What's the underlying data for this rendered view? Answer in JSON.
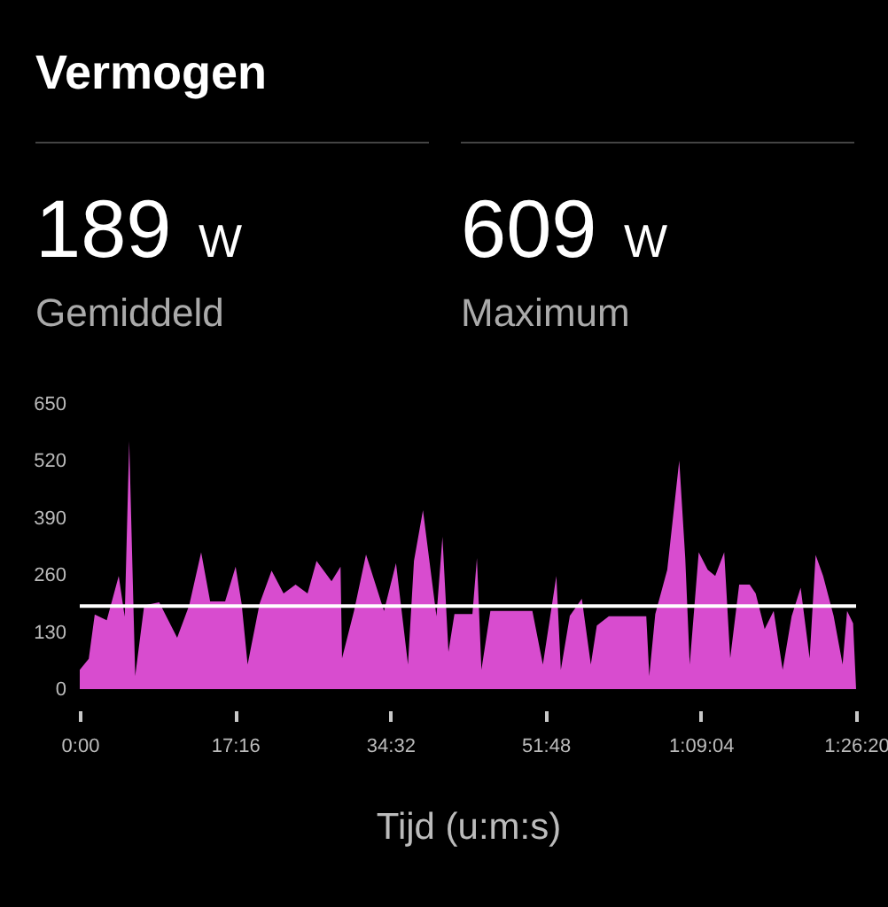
{
  "chart_data": {
    "type": "area",
    "title": "Vermogen",
    "xlabel": "Tijd (u:m:s)",
    "annotations": [
      "189 W",
      "Gemiddeld",
      "609 W",
      "Maximum"
    ],
    "x": [
      0,
      60,
      100,
      180,
      260,
      300,
      330,
      370,
      430,
      530,
      650,
      730,
      810,
      870,
      970,
      1040,
      1080,
      1120,
      1200,
      1280,
      1360,
      1440,
      1520,
      1580,
      1680,
      1740,
      1750,
      1830,
      1910,
      2030,
      2110,
      2190,
      2230,
      2290,
      2320,
      2380,
      2420,
      2460,
      2500,
      2620,
      2650,
      2680,
      2740,
      3020,
      3090,
      3180,
      3210,
      3270,
      3350,
      3410,
      3450,
      3530,
      3780,
      3800,
      3840,
      3920,
      4000,
      4040,
      4070,
      4130,
      4190,
      4240,
      4300,
      4340,
      4400,
      4470,
      4510,
      4570,
      4630,
      4690,
      4750,
      4810,
      4870,
      4910,
      4960,
      5030,
      5090,
      5120,
      5160,
      5180
    ],
    "values": [
      44,
      69,
      170,
      157,
      258,
      165,
      565,
      30,
      191,
      198,
      117,
      191,
      312,
      200,
      200,
      279,
      195,
      56,
      195,
      270,
      218,
      238,
      218,
      292,
      246,
      279,
      70,
      178,
      307,
      178,
      287,
      56,
      292,
      408,
      327,
      166,
      347,
      85,
      171,
      171,
      299,
      44,
      178,
      178,
      56,
      258,
      44,
      167,
      206,
      56,
      145,
      166,
      166,
      30,
      171,
      272,
      521,
      299,
      56,
      312,
      272,
      258,
      312,
      70,
      238,
      238,
      218,
      137,
      178,
      44,
      166,
      231,
      70,
      306,
      258,
      167,
      56,
      178,
      150,
      0
    ],
    "color": "#d84ccf",
    "xlim": [
      0,
      5180
    ],
    "xticks": [
      {
        "value": 0,
        "label": "0:00"
      },
      {
        "value": 1036,
        "label": "17:16"
      },
      {
        "value": 2072,
        "label": "34:32"
      },
      {
        "value": 3108,
        "label": "51:48"
      },
      {
        "value": 4144,
        "label": "1:09:04"
      },
      {
        "value": 5180,
        "label": "1:26:20"
      }
    ],
    "ylim": [
      0,
      650
    ],
    "yticks": [
      0,
      130,
      260,
      390,
      520,
      650
    ],
    "ref_lines": [
      {
        "axis": "y",
        "value": 189,
        "color": "#ffffff"
      }
    ]
  }
}
